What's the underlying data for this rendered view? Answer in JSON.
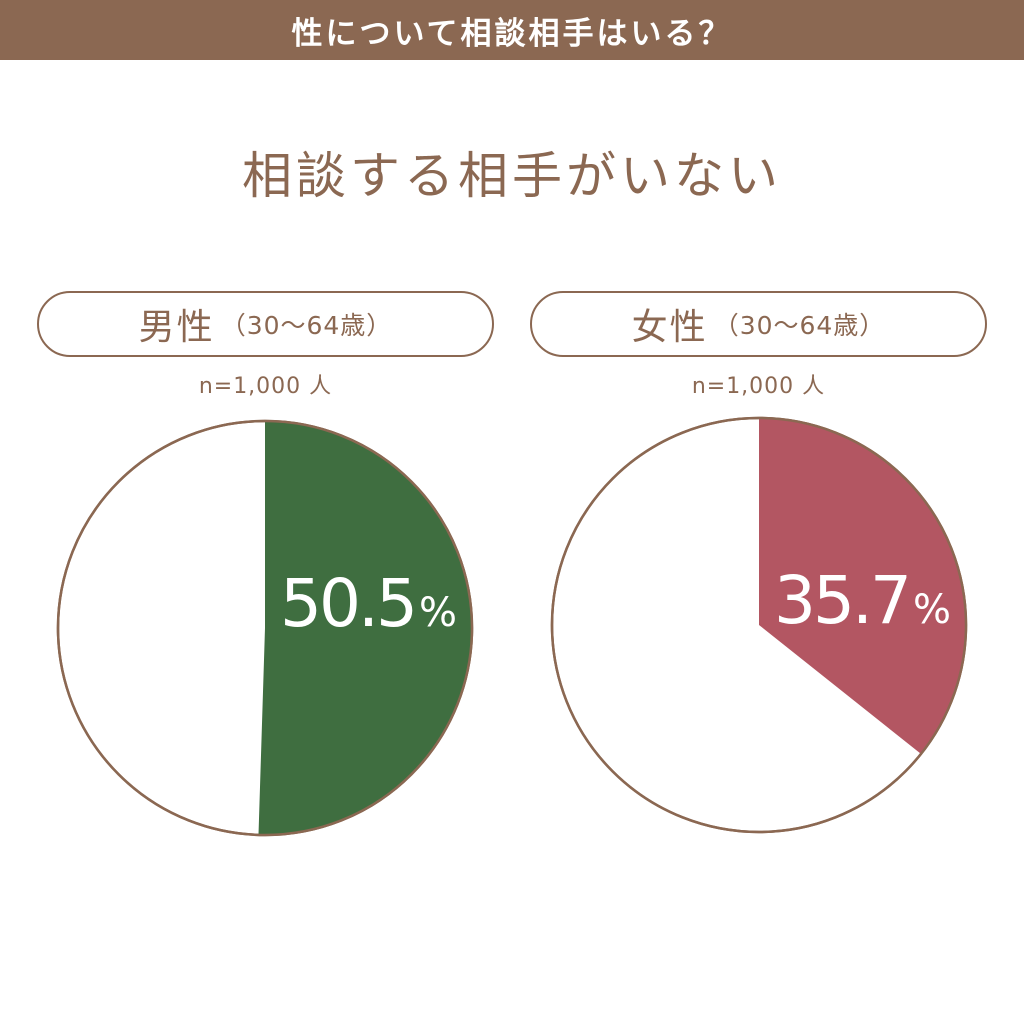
{
  "header": {
    "banner_title": "性について相談相手はいる？",
    "main_title": "相談する相手がいない"
  },
  "colors": {
    "brand_brown": "#8b6852",
    "male_green": "#3f6e40",
    "female_red": "#b35662",
    "background": "#ffffff"
  },
  "chart_data": [
    {
      "type": "pie",
      "title": "男性",
      "subtitle": "（30〜64歳）",
      "sample_label": "n=1,000 人",
      "slices": [
        {
          "label": "50.5%",
          "value": 50.5,
          "color": "#3f6e40",
          "highlighted": true
        },
        {
          "label": "",
          "value": 49.5,
          "color": "#ffffff",
          "highlighted": false
        }
      ],
      "value_text": "50.5",
      "unit_text": "%"
    },
    {
      "type": "pie",
      "title": "女性",
      "subtitle": "（30〜64歳）",
      "sample_label": "n=1,000 人",
      "slices": [
        {
          "label": "35.7%",
          "value": 35.7,
          "color": "#b35662",
          "highlighted": true
        },
        {
          "label": "",
          "value": 64.3,
          "color": "#ffffff",
          "highlighted": false
        }
      ],
      "value_text": "35.7",
      "unit_text": "%"
    }
  ]
}
